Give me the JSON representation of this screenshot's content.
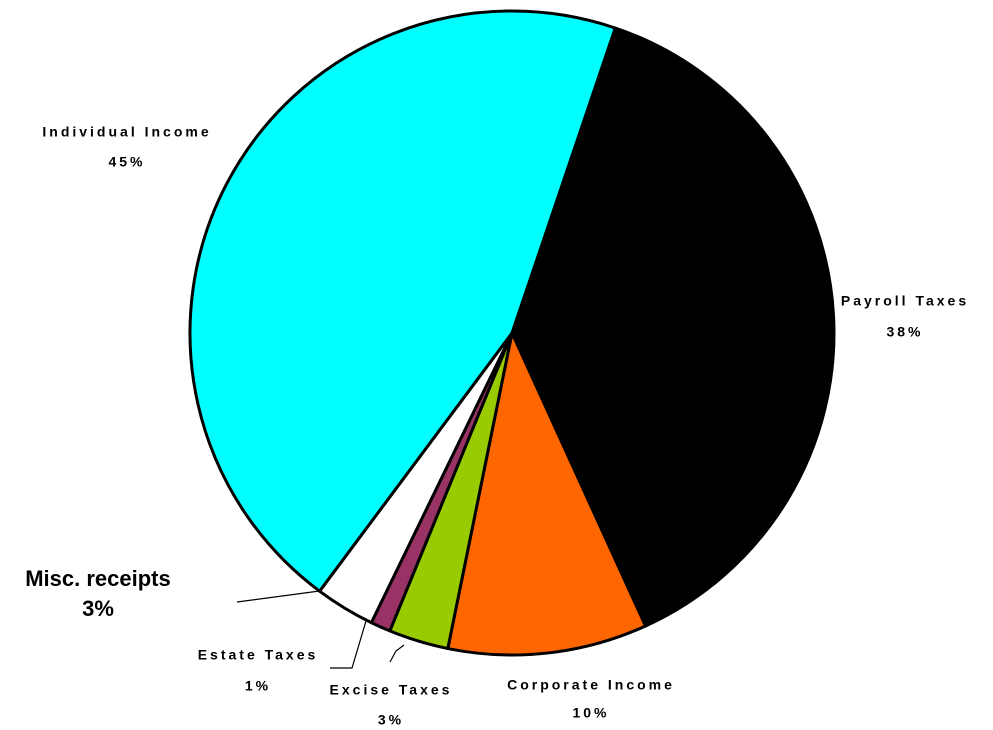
{
  "chart_data": {
    "type": "pie",
    "categories": [
      "Payroll Taxes",
      "Corporate Income",
      "Excise Taxes",
      "Estate Taxes",
      "Misc. receipts",
      "Individual Income"
    ],
    "values": [
      38,
      10,
      3,
      1,
      3,
      45
    ],
    "value_labels": [
      "38%",
      "10%",
      "3%",
      "1%",
      "3%",
      "45%"
    ],
    "colors": [
      "#000000",
      "#ff6600",
      "#99cc00",
      "#993366",
      "#ffffff",
      "#00ffff"
    ]
  }
}
